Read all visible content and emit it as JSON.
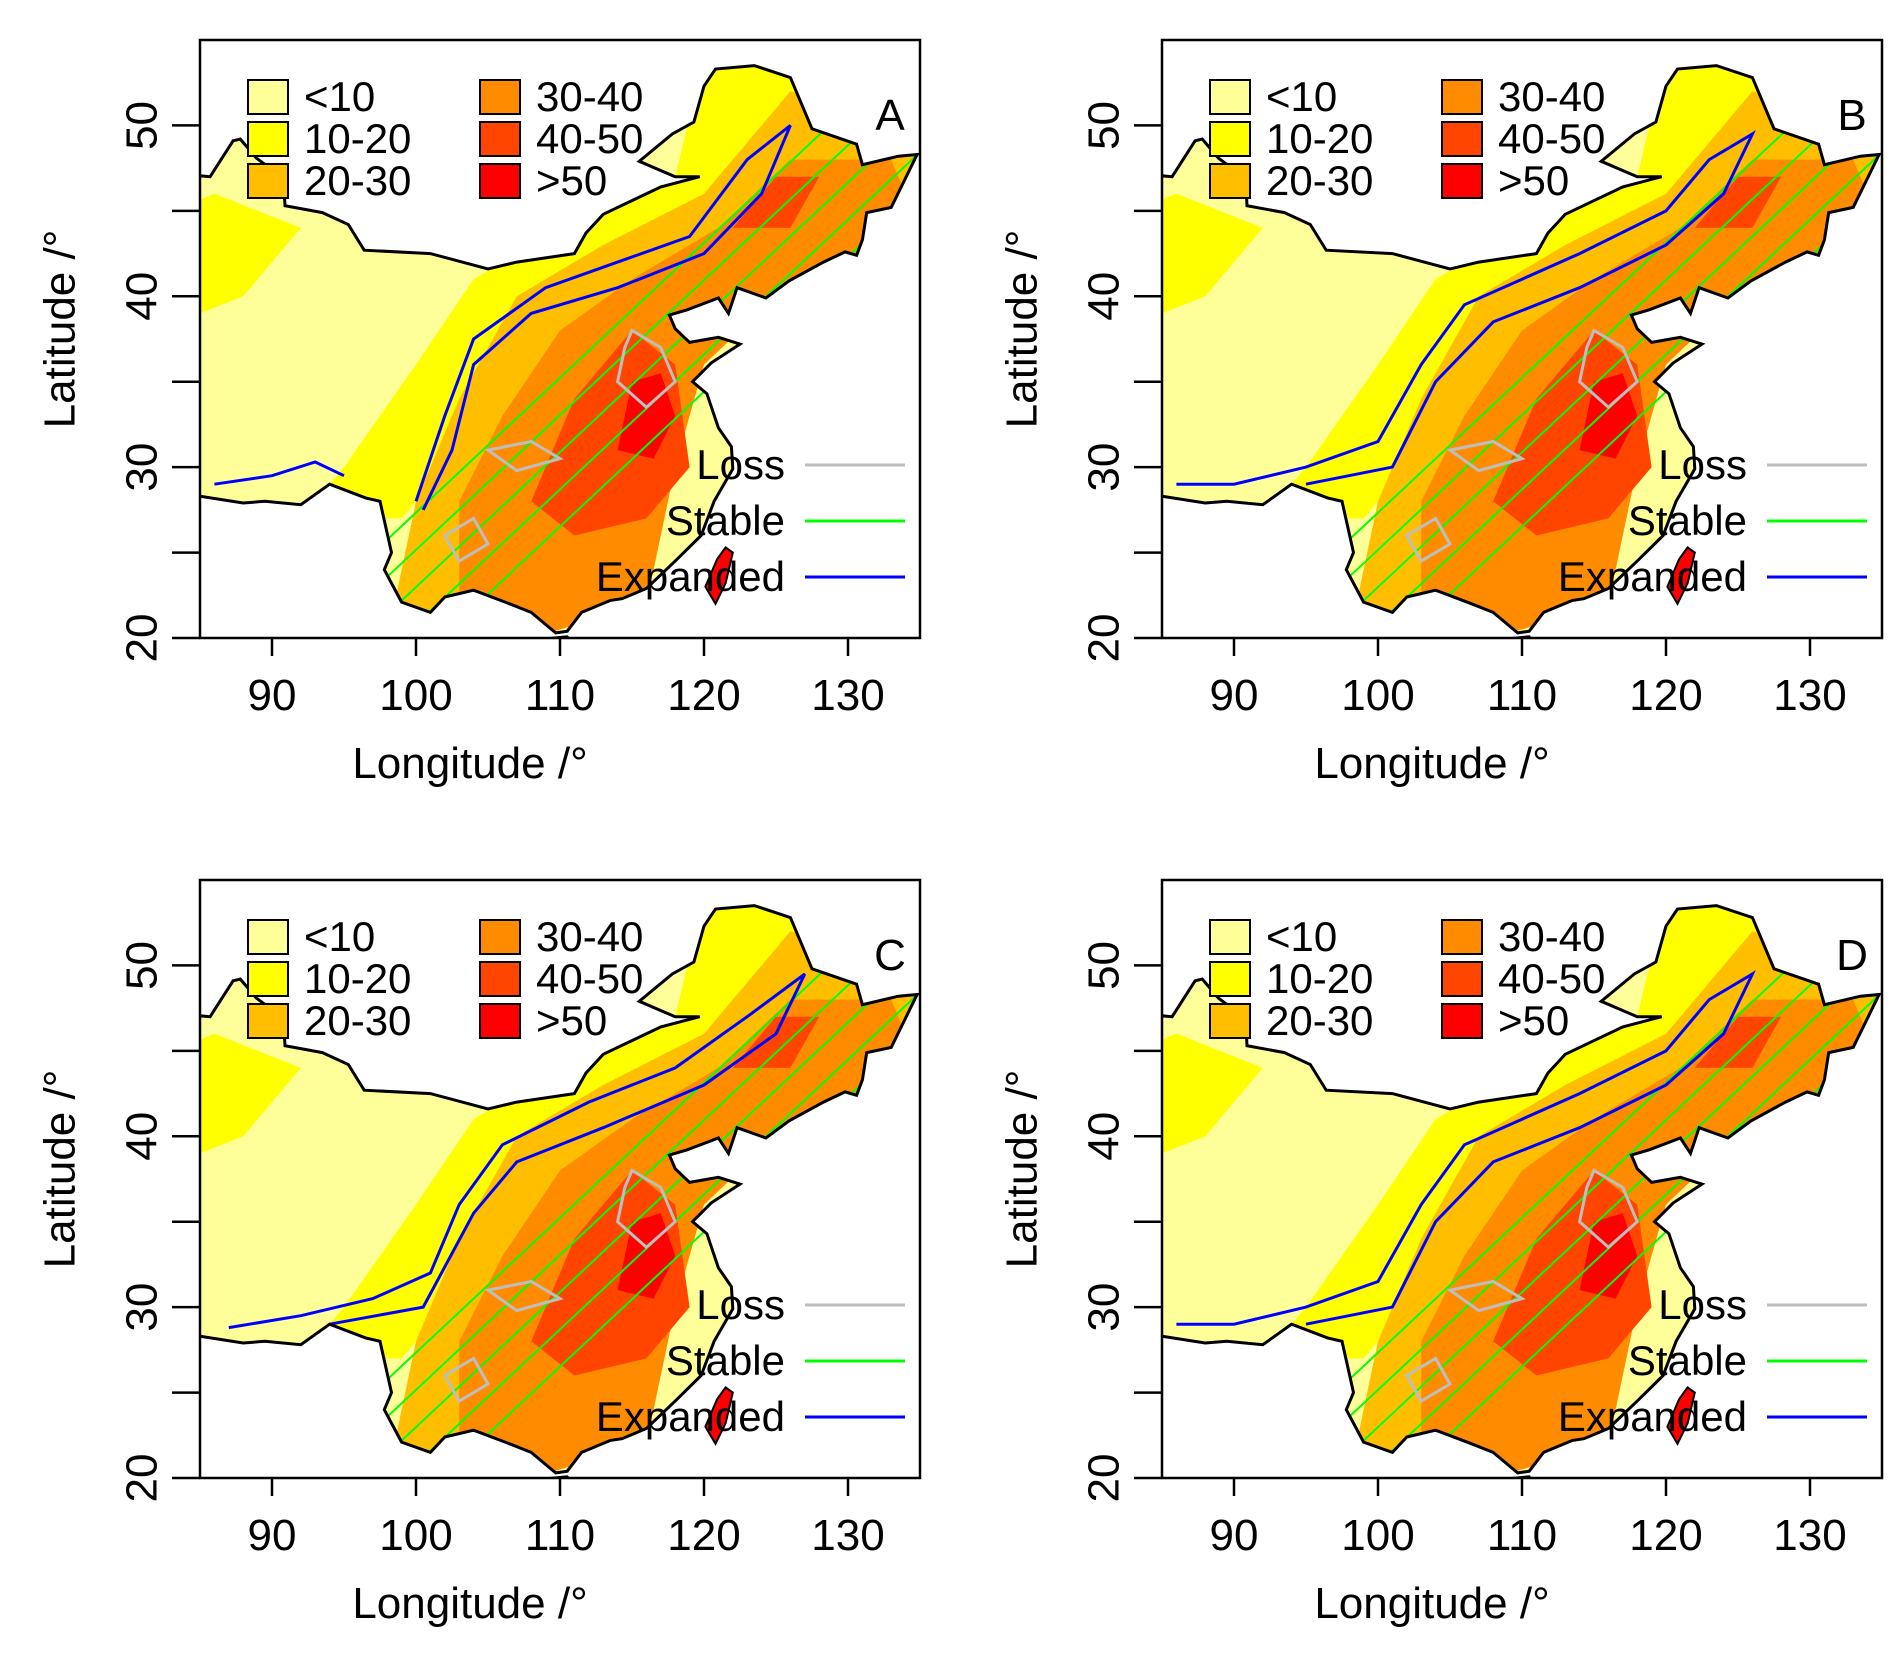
{
  "figure": {
    "x_axis": {
      "label": "Longitude /°",
      "ticks": [
        "90",
        "100",
        "110",
        "120",
        "130"
      ],
      "tick_values": [
        90,
        100,
        110,
        120,
        130
      ],
      "range": [
        85,
        135
      ]
    },
    "y_axis": {
      "label": "Latitude /°",
      "ticks": [
        "20",
        "30",
        "40",
        "50"
      ],
      "tick_values": [
        20,
        30,
        40,
        50
      ],
      "minor_tick_values": [
        25,
        35,
        45
      ],
      "range": [
        20,
        55
      ]
    },
    "color_legend": [
      {
        "label": "<10",
        "color": "#ffff99"
      },
      {
        "label": "10-20",
        "color": "#ffff00"
      },
      {
        "label": "20-30",
        "color": "#ffbf00"
      },
      {
        "label": "30-40",
        "color": "#ff8c00"
      },
      {
        "label": "40-50",
        "color": "#ff4500"
      },
      {
        "label": ">50",
        "color": "#ff0000"
      }
    ],
    "line_legend": [
      {
        "label": "Loss",
        "color": "#bebebe"
      },
      {
        "label": "Stable",
        "color": "#00ff00"
      },
      {
        "label": "Expanded",
        "color": "#0000ff"
      }
    ],
    "panels": [
      {
        "letter": "A"
      },
      {
        "letter": "B"
      },
      {
        "letter": "C"
      },
      {
        "letter": "D"
      }
    ]
  }
}
